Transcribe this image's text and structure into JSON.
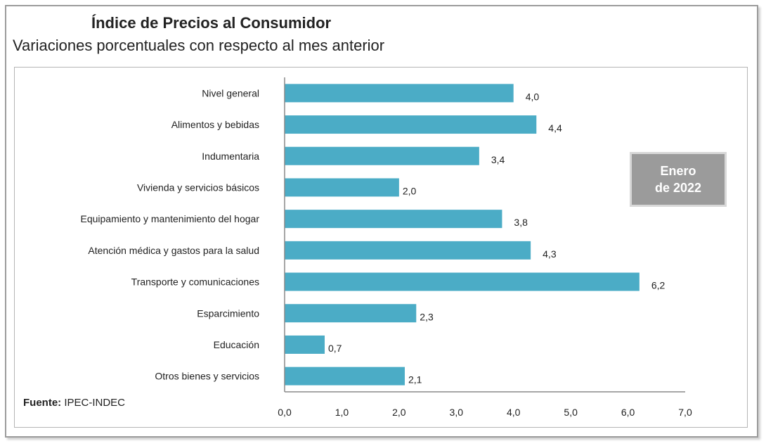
{
  "chart_data": {
    "type": "bar",
    "orientation": "horizontal",
    "title": "Índice de Precios al Consumidor",
    "subtitle": "Variaciones porcentuales con respecto al mes anterior",
    "categories": [
      "Nivel general",
      "Alimentos y bebidas",
      "Indumentaria",
      "Vivienda y servicios básicos",
      "Equipamiento y  mantenimiento  del hogar",
      "Atención médica y gastos  para la salud",
      "Transporte y comunicaciones",
      "Esparcimiento",
      "Educación",
      "Otros bienes y servicios"
    ],
    "values": [
      4.0,
      4.4,
      3.4,
      2.0,
      3.8,
      4.3,
      6.2,
      2.3,
      0.7,
      2.1
    ],
    "data_labels": [
      "4,0",
      "4,4",
      "3,4",
      "2,0",
      "3,8",
      "4,3",
      "6,2",
      "2,3",
      "0,7",
      "2,1"
    ],
    "xlim": [
      0,
      7
    ],
    "x_ticks": [
      "0,0",
      "1,0",
      "2,0",
      "3,0",
      "4,0",
      "5,0",
      "6,0",
      "7,0"
    ],
    "grid": false,
    "bar_color": "#4bacc6",
    "annotation": {
      "line1": "Enero",
      "line2": "de 2022"
    }
  },
  "source": {
    "label": "Fuente:",
    "value": "IPEC-INDEC"
  }
}
